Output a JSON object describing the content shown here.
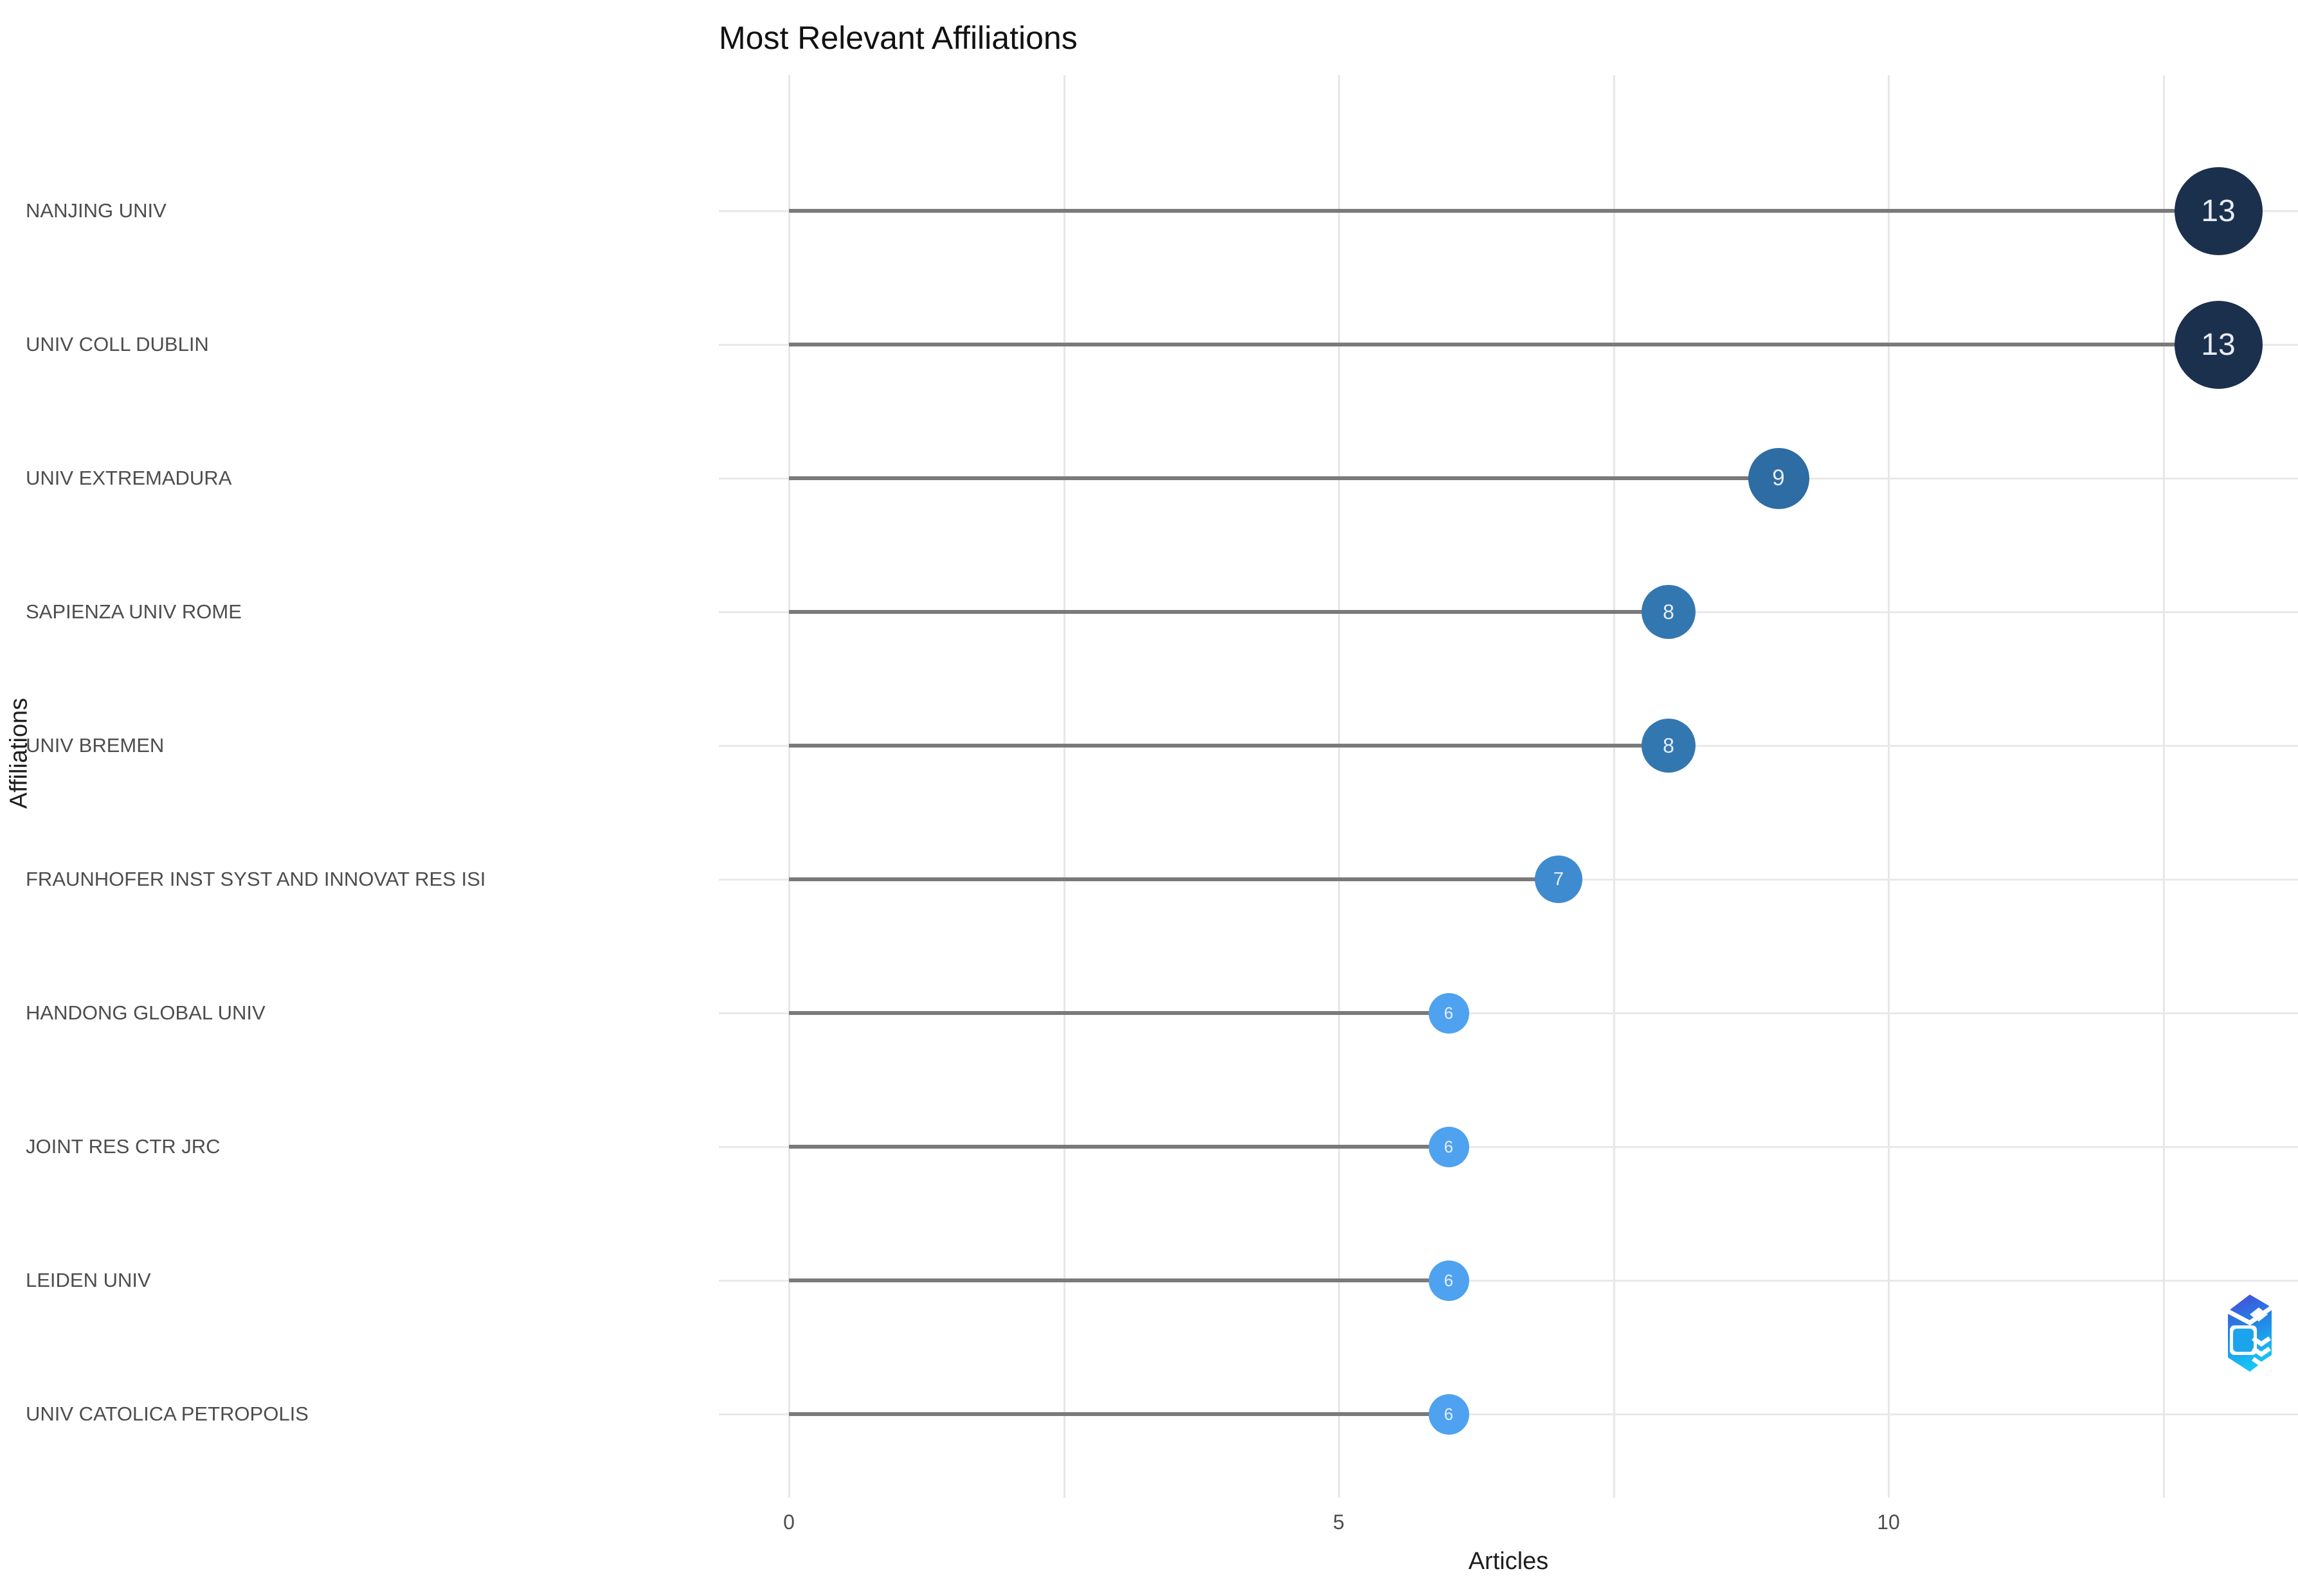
{
  "title": "Most Relevant Affiliations",
  "chart_data": {
    "type": "lollipop",
    "orientation": "horizontal",
    "title": "Most Relevant Affiliations",
    "xlabel": "Articles",
    "ylabel": "Affiliations",
    "categories": [
      "NANJING UNIV",
      "UNIV COLL DUBLIN",
      "UNIV EXTREMADURA",
      "SAPIENZA UNIV ROME",
      "UNIV BREMEN",
      "FRAUNHOFER INST SYST AND INNOVAT RES ISI",
      "HANDONG GLOBAL UNIV",
      "JOINT RES CTR JRC",
      "LEIDEN UNIV",
      "UNIV CATOLICA PETROPOLIS"
    ],
    "values": [
      13,
      13,
      9,
      8,
      8,
      7,
      6,
      6,
      6,
      6
    ],
    "point_colors": [
      "#1B304D",
      "#1B304D",
      "#2E6CA4",
      "#3377B1",
      "#3377B1",
      "#3F8BD0",
      "#4EA2EF",
      "#4EA2EF",
      "#4EA2EF",
      "#4EA2EF"
    ],
    "value_label_color": "#E8EDF3",
    "x_ticks": [
      0,
      5,
      10
    ],
    "x_gridlines": [
      0,
      2.5,
      5,
      7.5,
      10,
      12.5
    ],
    "xlim": [
      0,
      13.7
    ],
    "grid": true,
    "legend": "none",
    "stem_color": "#7A7A7A",
    "gridline_color": "#E7E7E7",
    "background": "#FFFFFF"
  },
  "logo": {
    "name": "biblioshiny-logo",
    "colors": [
      "#4E46D8",
      "#2380E4",
      "#17C4F5"
    ]
  }
}
